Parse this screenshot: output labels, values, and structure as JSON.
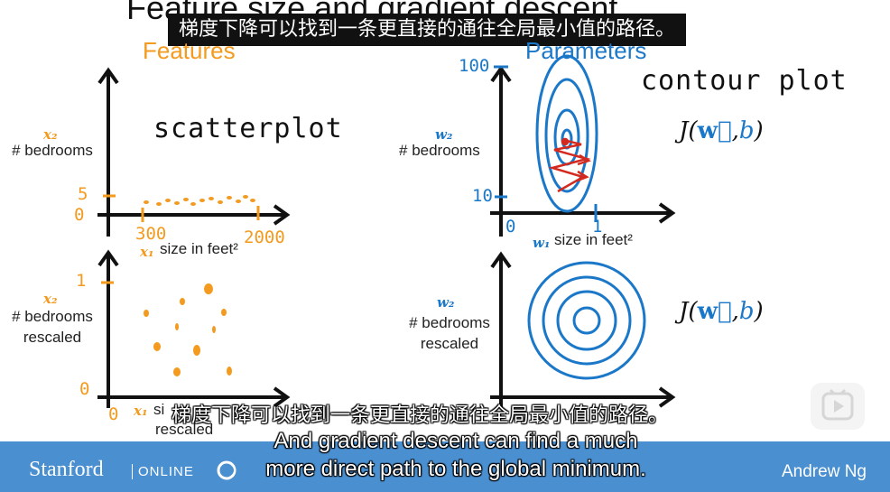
{
  "title": "Feature size and gradient descent",
  "subtitle_top": "梯度下降可以找到一条更直接的通往全局最小值的路径。",
  "headings": {
    "features": "Features",
    "parameters": "Parameters"
  },
  "annotations": {
    "scatterplot": "scatterplot",
    "contour": "contour plot"
  },
  "plots": {
    "top_left": {
      "y_var": "x₂",
      "y_label": "# bedrooms",
      "x_var": "x₁",
      "x_label": "size in feet²",
      "ticks": {
        "y_hi": "5",
        "y_lo": "0",
        "x_lo": "300",
        "x_hi": "2000"
      }
    },
    "bottom_left": {
      "y_var": "x₂",
      "y_label_1": "# bedrooms",
      "y_label_2": "rescaled",
      "x_var": "x₁",
      "x_label_1": "si",
      "x_label_2": "rescaled",
      "ticks": {
        "y_hi": "1",
        "y_lo": "0",
        "x_lo": "0"
      }
    },
    "top_right": {
      "y_var": "w₂",
      "y_label": "bedrooms",
      "x_var": "w₁",
      "x_label": "size in feet²",
      "ticks": {
        "y_hi": "100",
        "y_lo": "10",
        "x_lo": "0",
        "x_hi": "1"
      },
      "cost": {
        "J": "J(",
        "w": "w⃗",
        "comma": ",",
        "b": "b",
        "close": ")"
      }
    },
    "bottom_right": {
      "y_var": "w₂",
      "y_label_1": "# bedrooms",
      "y_label_2": "rescaled",
      "cost": {
        "J": "J(",
        "w": "w⃗",
        "comma": ",",
        "b": "b",
        "close": ")"
      }
    }
  },
  "subtitles": {
    "cn": "梯度下降可以找到一条更直接的通往全局最小值的路径。",
    "en_line1": "And gradient descent can find a much",
    "en_line2": "more direct path to the global minimum."
  },
  "footer": {
    "brand": "Stanford",
    "online": "ONLINE",
    "instructor": "Andrew Ng"
  },
  "colors": {
    "orange": "#f39a1f",
    "blue": "#1b78c9",
    "red": "#d32a1f",
    "bar": "#4a8fd0"
  }
}
